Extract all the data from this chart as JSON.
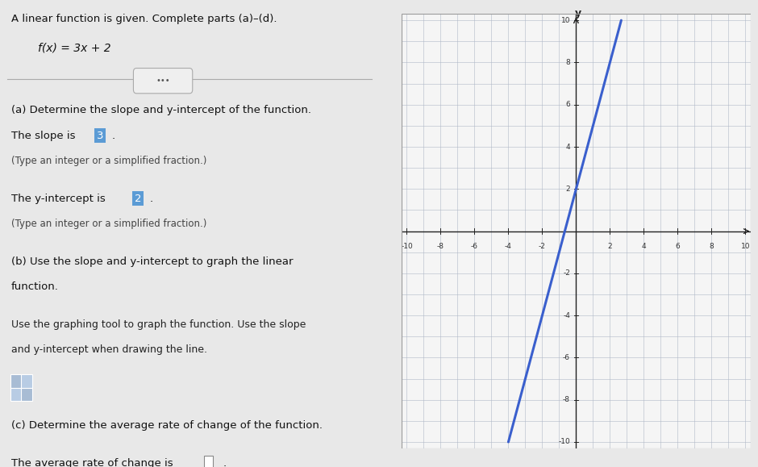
{
  "title": "A linear function is given. Complete parts (a)–(d).",
  "function_label": "f(x) = 3x + 2",
  "slope": 3,
  "y_intercept": 2,
  "x_range": [
    -10,
    10
  ],
  "y_range": [
    -10,
    10
  ],
  "line_color": "#3a5fcd",
  "line_width": 2.2,
  "grid_color": "#b0b8c8",
  "axis_color": "#222222",
  "panel_bg": "#e8e8e8",
  "graph_bg": "#f5f5f5",
  "tick_values": [
    -10,
    -8,
    -6,
    -4,
    -2,
    2,
    4,
    6,
    8,
    10
  ],
  "highlight_color": "#5b9bd5",
  "divider_y": 0.83
}
